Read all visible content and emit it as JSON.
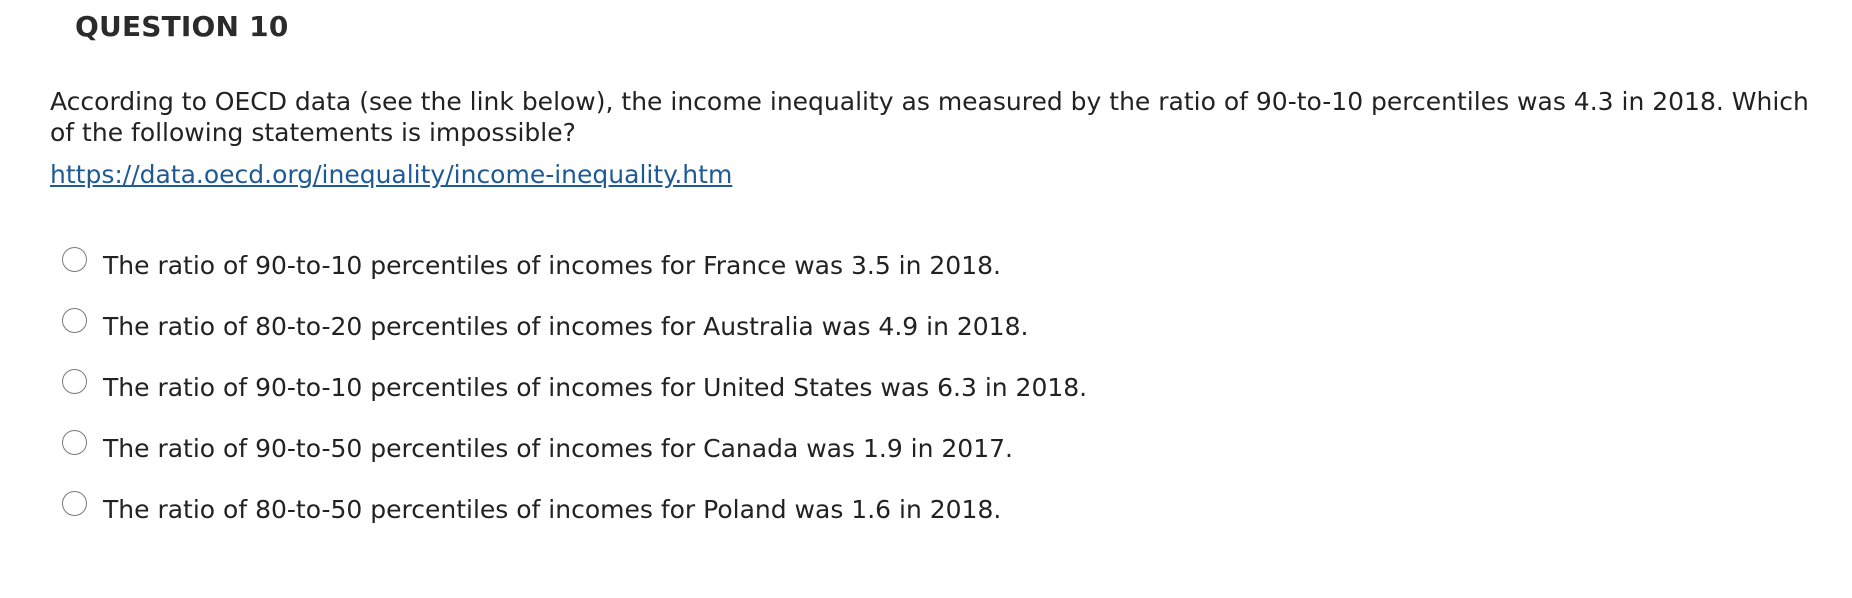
{
  "question": {
    "header": "QUESTION 10",
    "text": "According to OECD data (see the link below), the income inequality as measured by the ratio of 90-to-10 percentiles was 4.3 in 2018. Which of the following statements is impossible?",
    "link": "https://data.oecd.org/inequality/income-inequality.htm"
  },
  "options": [
    {
      "label": "The ratio of 90-to-10 percentiles of incomes for France was 3.5 in 2018.",
      "selected": false
    },
    {
      "label": "The ratio of 80-to-20 percentiles of incomes for Australia was 4.9 in 2018.",
      "selected": false
    },
    {
      "label": "The ratio of 90-to-10 percentiles of incomes for United States was 6.3 in 2018.",
      "selected": false
    },
    {
      "label": "The ratio of 90-to-50 percentiles of incomes for Canada was 1.9 in 2017.",
      "selected": false
    },
    {
      "label": "The ratio of 80-to-50 percentiles of incomes for Poland was 1.6 in 2018.",
      "selected": false
    }
  ],
  "colors": {
    "link": "#1e5a96",
    "text": "#222222",
    "radio_border": "#7a7a7a"
  }
}
